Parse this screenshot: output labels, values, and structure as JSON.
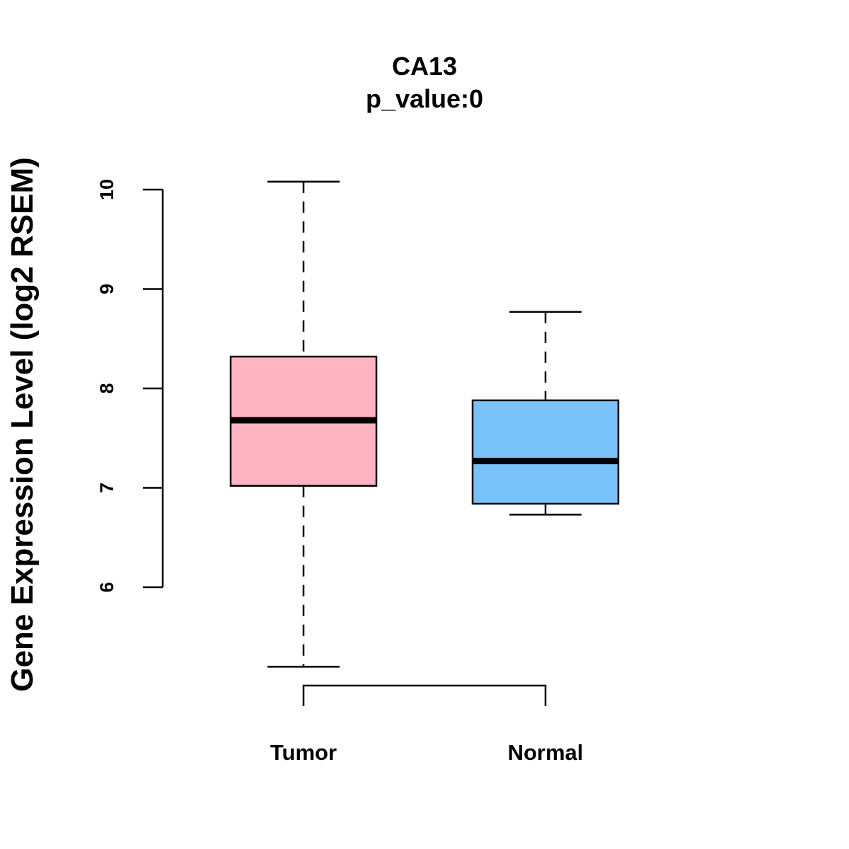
{
  "chart_data": {
    "type": "box",
    "title": "CA13",
    "subtitle": "p_value:0",
    "xlabel": "",
    "ylabel": "Gene Expression Level (log2 RSEM)",
    "ylim": [
      6,
      10
    ],
    "yticks": [
      6,
      7,
      8,
      9,
      10
    ],
    "categories": [
      "Tumor",
      "Normal"
    ],
    "series": [
      {
        "name": "Tumor",
        "min": 5.2,
        "q1": 7.02,
        "median": 7.68,
        "q3": 8.32,
        "max": 10.08,
        "color": "#FFB3C3"
      },
      {
        "name": "Normal",
        "min": 6.73,
        "q1": 6.84,
        "median": 7.27,
        "q3": 7.88,
        "max": 8.77,
        "color": "#79C2F9"
      }
    ],
    "grid": false,
    "comparison_bracket": [
      "Tumor",
      "Normal"
    ]
  }
}
